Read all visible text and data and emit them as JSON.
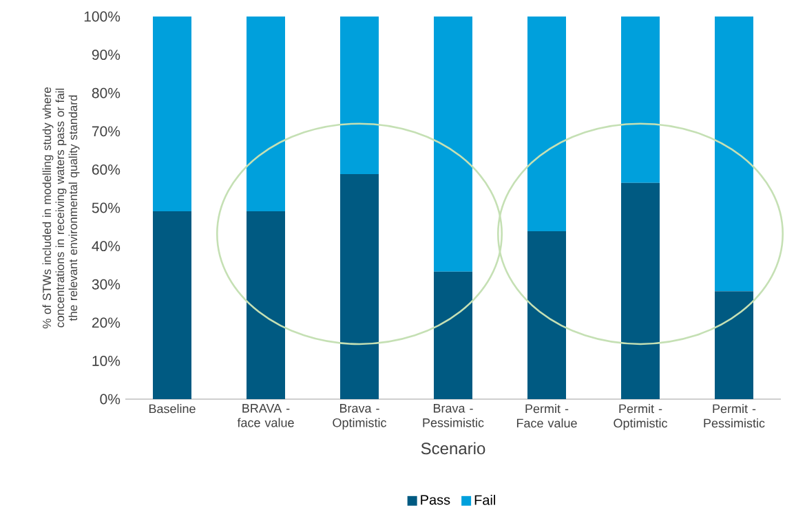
{
  "chart_data": {
    "type": "bar",
    "stacked": true,
    "xlabel": "Scenario",
    "ylabel": "% of STWs included in modelling study where concentrations in receiving waters pass or fail the relevant environmental quality standard",
    "categories": [
      "Baseline",
      "BRAVA - face value",
      "Brava - Optimistic",
      "Brava - Pessimistic",
      "Permit - Face value",
      "Permit - Optimistic",
      "Permit - Pessimistic"
    ],
    "series": [
      {
        "name": "Pass",
        "color": "#005a82",
        "values": [
          49.1,
          49.1,
          58.8,
          33.3,
          43.9,
          56.5,
          28.2
        ]
      },
      {
        "name": "Fail",
        "color": "#00a0dc",
        "values": [
          50.9,
          50.9,
          41.2,
          66.7,
          56.1,
          43.5,
          71.8
        ]
      }
    ],
    "ylim": [
      0,
      100
    ],
    "yticks": [
      {
        "value": 0,
        "label": "0%"
      },
      {
        "value": 10,
        "label": "10%"
      },
      {
        "value": 20,
        "label": "20%"
      },
      {
        "value": 30,
        "label": "30%"
      },
      {
        "value": 40,
        "label": "40%"
      },
      {
        "value": 50,
        "label": "50%"
      },
      {
        "value": 60,
        "label": "60%"
      },
      {
        "value": 70,
        "label": "70%"
      },
      {
        "value": 80,
        "label": "80%"
      },
      {
        "value": 90,
        "label": "90%"
      },
      {
        "value": 100,
        "label": "100%"
      }
    ],
    "grid": false,
    "legend": "bottom"
  }
}
